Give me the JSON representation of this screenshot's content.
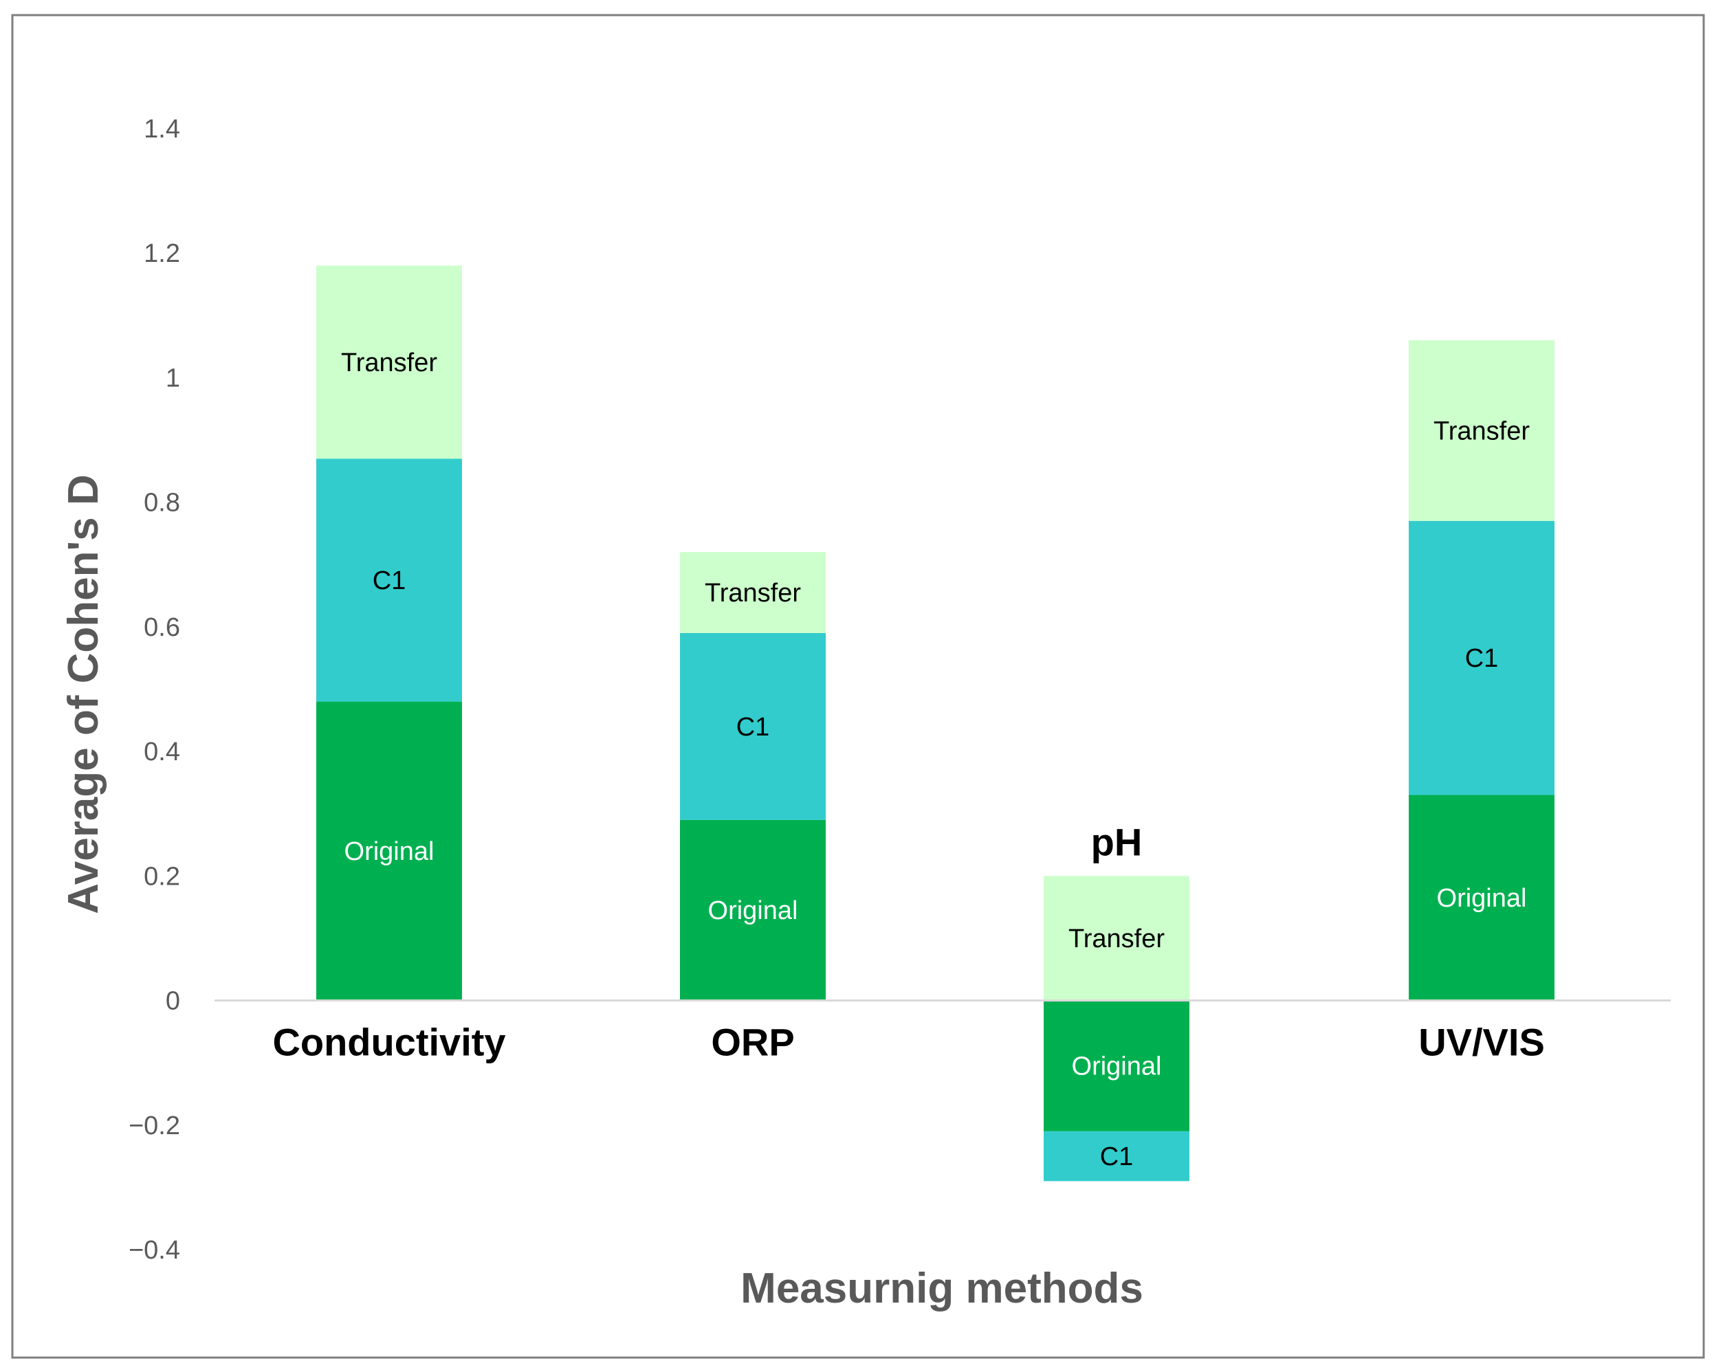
{
  "chart_data": {
    "type": "bar",
    "stacked": true,
    "title": "",
    "xlabel": "Measurnig methods",
    "ylabel": "Average of  Cohen's D",
    "ylim": [
      -0.4,
      1.4
    ],
    "yticks": [
      1.4,
      1.2,
      1,
      0.8,
      0.6,
      0.4,
      0.2,
      0,
      -0.2,
      -0.4
    ],
    "ytick_labels": [
      "1.4",
      "1.2",
      "1",
      "0.8",
      "0.6",
      "0.4",
      "0.2",
      "0",
      "−0.2",
      "−0.4"
    ],
    "grid": false,
    "legend": "none (segments labeled inside bars)",
    "categories": [
      "Conductivity",
      "ORP",
      "pH",
      "UV/VIS"
    ],
    "series": [
      {
        "name": "Original",
        "label": "Original",
        "color": "#00b050",
        "label_color": "#ffffff",
        "values": [
          0.48,
          0.29,
          -0.21,
          0.33
        ]
      },
      {
        "name": "C1",
        "label": "C1",
        "color": "#33cccc",
        "label_color": "#000000",
        "values": [
          0.39,
          0.3,
          -0.08,
          0.44
        ]
      },
      {
        "name": "Transfer",
        "label": "Transfer",
        "color": "#ccffcc",
        "label_color": "#000000",
        "values": [
          0.31,
          0.13,
          0.2,
          0.29
        ]
      }
    ]
  }
}
